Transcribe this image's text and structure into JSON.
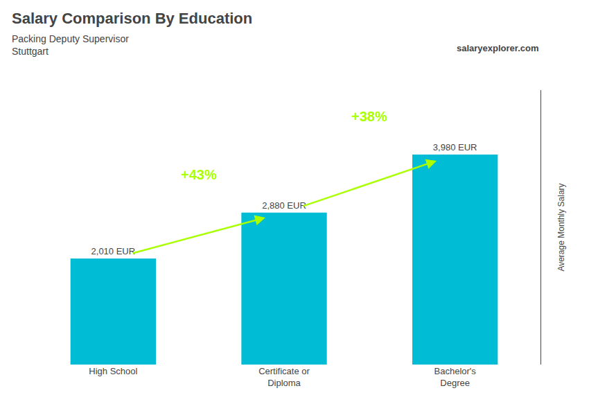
{
  "chart_data": {
    "type": "bar",
    "title": "Salary Comparison By Education",
    "subtitle": [
      "Packing Deputy Supervisor",
      "Stuttgart"
    ],
    "categories": [
      "High School",
      "Certificate or\nDiploma",
      "Bachelor's\nDegree"
    ],
    "values": [
      2010,
      2880,
      3980
    ],
    "value_labels": [
      "2,010 EUR",
      "2,880 EUR",
      "3,980 EUR"
    ],
    "data_labels": true,
    "color": "#00bcd4",
    "ylabel": "Average Monthly Salary",
    "ylim": [
      0,
      5200
    ],
    "yticks": [],
    "tick_labels": "x",
    "grid": false,
    "annotations": [
      {
        "text": "+43%",
        "between": [
          0,
          1
        ],
        "color": "#aaff00"
      },
      {
        "text": "+38%",
        "between": [
          1,
          2
        ],
        "color": "#aaff00"
      },
      {
        "text": "salaryexplorer.com"
      }
    ]
  }
}
